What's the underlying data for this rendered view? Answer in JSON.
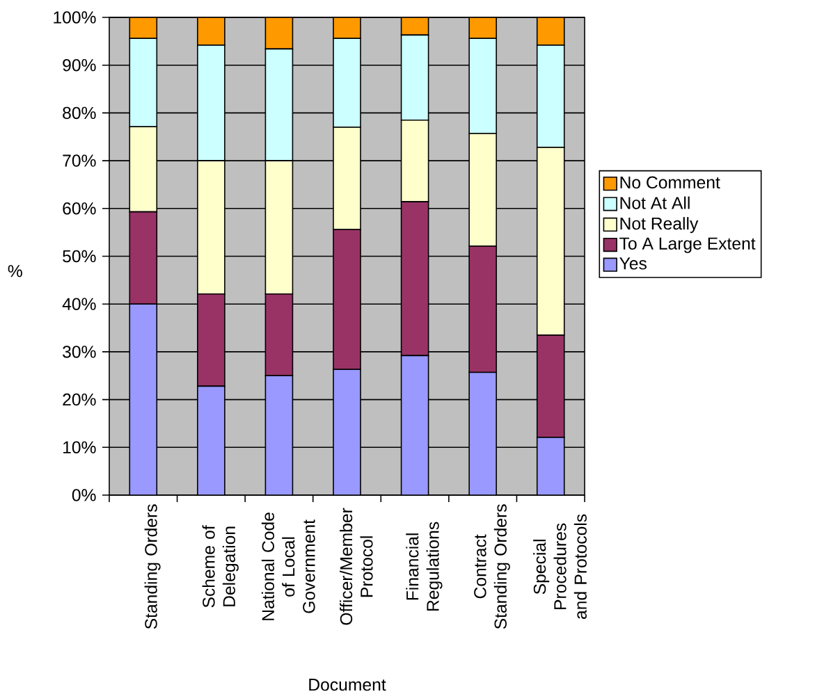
{
  "chart_data": {
    "type": "bar",
    "stacked": true,
    "xlabel": "Document",
    "ylabel": "%",
    "categories": [
      "Standing Orders",
      "Scheme of Delegation",
      "National Code of Local Government",
      "Officer/Member Protocol",
      "Financial Regulations",
      "Contract Standing Orders",
      "Special Procedures and Protocols"
    ],
    "series": [
      {
        "name": "Yes",
        "color": "#9999ff",
        "values": [
          40,
          22.8,
          25,
          26.3,
          29.2,
          25.7,
          12.1
        ]
      },
      {
        "name": "To A Large Extent",
        "color": "#993366",
        "values": [
          19.3,
          19.3,
          17.1,
          29.3,
          32.2,
          26.4,
          21.4
        ]
      },
      {
        "name": "Not Really",
        "color": "#ffffcc",
        "values": [
          17.8,
          27.9,
          27.9,
          21.4,
          17.1,
          23.6,
          39.3
        ]
      },
      {
        "name": "Not At All",
        "color": "#ccffff",
        "values": [
          18.5,
          24.2,
          23.4,
          18.6,
          17.8,
          19.9,
          21.4
        ]
      },
      {
        "name": "No Comment",
        "color": "#ff9900",
        "values": [
          4.4,
          5.8,
          6.6,
          4.4,
          3.7,
          4.4,
          5.8
        ]
      }
    ],
    "ylim": [
      0,
      100
    ],
    "yticks": [
      {
        "value": 0,
        "label": "0%"
      },
      {
        "value": 10,
        "label": "10%"
      },
      {
        "value": 20,
        "label": "20%"
      },
      {
        "value": 30,
        "label": "30%"
      },
      {
        "value": 40,
        "label": "40%"
      },
      {
        "value": 50,
        "label": "50%"
      },
      {
        "value": 60,
        "label": "60%"
      },
      {
        "value": 70,
        "label": "70%"
      },
      {
        "value": 80,
        "label": "80%"
      },
      {
        "value": 90,
        "label": "90%"
      },
      {
        "value": 100,
        "label": "100%"
      }
    ],
    "grid": "y",
    "legend": "right"
  }
}
